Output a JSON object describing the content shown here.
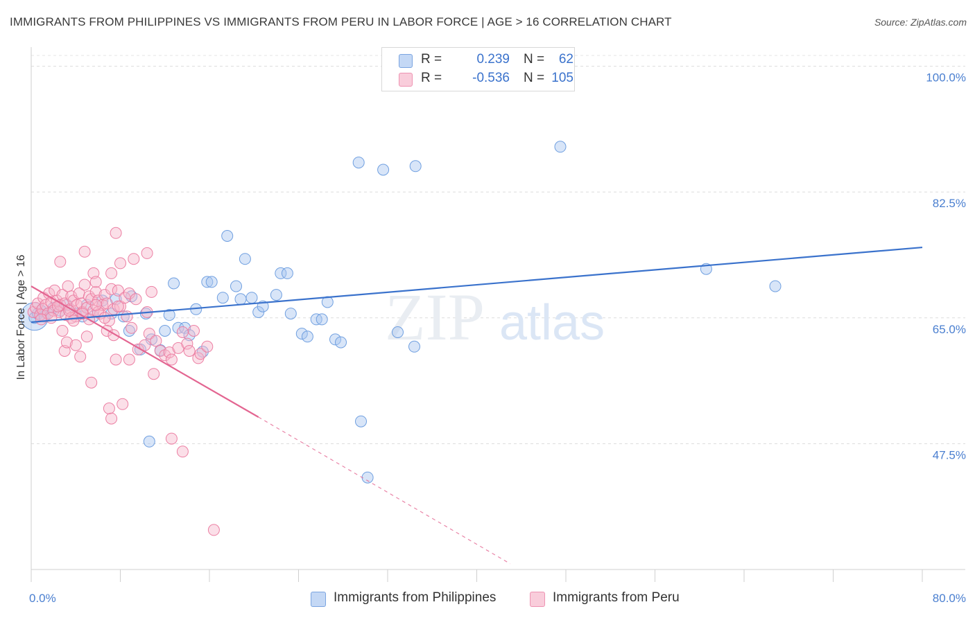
{
  "title": "IMMIGRANTS FROM PHILIPPINES VS IMMIGRANTS FROM PERU IN LABOR FORCE | AGE > 16 CORRELATION CHART",
  "source": "Source: ZipAtlas.com",
  "watermark": {
    "zip": "ZIP",
    "atlas": "atlas"
  },
  "legend": {
    "rows": [
      {
        "r_label": "R =",
        "r_value": "0.239",
        "n_label": "N =",
        "n_value": "62",
        "color": "#a9c6f0"
      },
      {
        "r_label": "R =",
        "r_value": "-0.536",
        "n_label": "N =",
        "n_value": "105",
        "color": "#f6b8cc"
      }
    ]
  },
  "bottom_legend": [
    {
      "label": "Immigrants from Philippines",
      "color": "#a9c6f0"
    },
    {
      "label": "Immigrants from Peru",
      "color": "#f6b8cc"
    }
  ],
  "chart_data": {
    "type": "scatter",
    "title": "IMMIGRANTS FROM PHILIPPINES VS IMMIGRANTS FROM PERU IN LABOR FORCE | AGE > 16 CORRELATION CHART",
    "xlabel": "",
    "ylabel": "In Labor Force | Age > 16",
    "xlim": [
      0,
      80
    ],
    "ylim": [
      30,
      101.5
    ],
    "x_tick_labels": [
      {
        "value": 0,
        "label": "0.0%"
      },
      {
        "value": 80,
        "label": "80.0%"
      }
    ],
    "y_ticks": [
      {
        "value": 100,
        "label": "100.0%"
      },
      {
        "value": 82.5,
        "label": "82.5%"
      },
      {
        "value": 65,
        "label": "65.0%"
      },
      {
        "value": 47.5,
        "label": "47.5%"
      }
    ],
    "x_minor_ticks": [
      0,
      8,
      16,
      24,
      32,
      40,
      48,
      56,
      64,
      72,
      80
    ],
    "grid": true,
    "series": [
      {
        "name": "Immigrants from Philippines",
        "color": "#6f9fe0",
        "fill": "#a9c6f0",
        "stroke": "#6f9fe0",
        "trend": {
          "x": [
            0,
            80
          ],
          "y": [
            64.4,
            74.8
          ],
          "color": "#3a72cc",
          "dashed_extension": false
        },
        "points": [
          [
            0.3,
            65.0
          ],
          [
            0.6,
            65.6
          ],
          [
            0.9,
            66.0
          ],
          [
            1.2,
            65.2
          ],
          [
            1.5,
            65.6
          ],
          [
            2.0,
            66.4
          ],
          [
            2.6,
            66.0
          ],
          [
            3.2,
            66.8
          ],
          [
            4.0,
            65.6
          ],
          [
            4.6,
            65.2
          ],
          [
            5.0,
            66.8
          ],
          [
            5.6,
            65.2
          ],
          [
            6.4,
            67.4
          ],
          [
            7.6,
            67.6
          ],
          [
            8.3,
            65.2
          ],
          [
            8.8,
            63.2
          ],
          [
            9.8,
            60.6
          ],
          [
            10.3,
            65.6
          ],
          [
            11.6,
            60.5
          ],
          [
            12.0,
            63.2
          ],
          [
            12.4,
            65.4
          ],
          [
            12.8,
            69.8
          ],
          [
            13.2,
            63.6
          ],
          [
            13.8,
            63.6
          ],
          [
            14.2,
            62.6
          ],
          [
            14.8,
            66.2
          ],
          [
            15.4,
            60.3
          ],
          [
            15.8,
            70.0
          ],
          [
            16.2,
            70.0
          ],
          [
            17.2,
            67.8
          ],
          [
            17.6,
            76.4
          ],
          [
            18.4,
            69.4
          ],
          [
            18.8,
            67.6
          ],
          [
            19.2,
            73.2
          ],
          [
            19.8,
            67.8
          ],
          [
            20.4,
            65.8
          ],
          [
            20.8,
            66.6
          ],
          [
            22.0,
            68.2
          ],
          [
            22.4,
            71.2
          ],
          [
            23.0,
            71.2
          ],
          [
            23.3,
            65.6
          ],
          [
            24.3,
            62.8
          ],
          [
            24.8,
            62.4
          ],
          [
            25.6,
            64.8
          ],
          [
            26.1,
            64.8
          ],
          [
            26.6,
            67.2
          ],
          [
            27.3,
            62.0
          ],
          [
            27.8,
            61.6
          ],
          [
            29.4,
            86.6
          ],
          [
            29.6,
            50.6
          ],
          [
            30.2,
            42.8
          ],
          [
            31.6,
            85.6
          ],
          [
            32.9,
            63.0
          ],
          [
            34.4,
            61.0
          ],
          [
            34.5,
            86.1
          ],
          [
            10.6,
            47.8
          ],
          [
            47.5,
            88.8
          ],
          [
            60.6,
            71.8
          ],
          [
            66.8,
            69.4
          ],
          [
            7.2,
            65.6
          ],
          [
            9.0,
            68.0
          ],
          [
            10.8,
            62.0
          ]
        ]
      },
      {
        "name": "Immigrants from Peru",
        "color": "#ec7fa3",
        "fill": "#f6b8cc",
        "stroke": "#ec7fa3",
        "trend": {
          "x": [
            0,
            20.4
          ],
          "y": [
            69.4,
            51.2
          ],
          "dashed_x": [
            20.4,
            43.0
          ],
          "dashed_y": [
            51.2,
            30.8
          ],
          "color": "#e36591",
          "dashed_extension": true
        },
        "points": [
          [
            0.2,
            65.8
          ],
          [
            0.4,
            66.4
          ],
          [
            0.6,
            67.0
          ],
          [
            0.8,
            65.4
          ],
          [
            1.0,
            66.2
          ],
          [
            1.1,
            67.8
          ],
          [
            1.3,
            66.8
          ],
          [
            1.5,
            65.6
          ],
          [
            1.6,
            68.4
          ],
          [
            1.8,
            67.2
          ],
          [
            2.0,
            66.0
          ],
          [
            2.1,
            68.8
          ],
          [
            2.3,
            67.4
          ],
          [
            2.5,
            65.8
          ],
          [
            2.6,
            66.8
          ],
          [
            2.8,
            68.2
          ],
          [
            3.0,
            67.0
          ],
          [
            3.1,
            65.4
          ],
          [
            3.3,
            69.4
          ],
          [
            3.5,
            66.2
          ],
          [
            3.6,
            68.0
          ],
          [
            3.8,
            67.4
          ],
          [
            4.0,
            65.2
          ],
          [
            4.1,
            66.8
          ],
          [
            4.3,
            68.4
          ],
          [
            4.5,
            67.0
          ],
          [
            4.6,
            65.8
          ],
          [
            4.8,
            69.6
          ],
          [
            5.0,
            66.4
          ],
          [
            5.2,
            68.0
          ],
          [
            5.4,
            67.6
          ],
          [
            5.6,
            66.0
          ],
          [
            5.8,
            68.6
          ],
          [
            6.0,
            67.4
          ],
          [
            6.2,
            65.6
          ],
          [
            6.4,
            66.8
          ],
          [
            6.6,
            68.2
          ],
          [
            6.8,
            67.0
          ],
          [
            7.0,
            64.6
          ],
          [
            7.2,
            69.0
          ],
          [
            7.4,
            66.2
          ],
          [
            7.8,
            68.8
          ],
          [
            8.0,
            66.6
          ],
          [
            8.4,
            67.8
          ],
          [
            8.8,
            68.4
          ],
          [
            2.6,
            72.8
          ],
          [
            2.8,
            63.2
          ],
          [
            3.0,
            60.4
          ],
          [
            3.2,
            61.6
          ],
          [
            3.6,
            65.0
          ],
          [
            3.8,
            64.6
          ],
          [
            4.0,
            61.2
          ],
          [
            4.4,
            59.6
          ],
          [
            4.6,
            65.6
          ],
          [
            4.8,
            74.2
          ],
          [
            5.0,
            62.4
          ],
          [
            5.2,
            64.8
          ],
          [
            5.6,
            71.2
          ],
          [
            5.8,
            70.0
          ],
          [
            6.0,
            65.8
          ],
          [
            5.4,
            56.0
          ],
          [
            6.6,
            65.0
          ],
          [
            6.8,
            63.2
          ],
          [
            7.2,
            71.2
          ],
          [
            7.4,
            62.6
          ],
          [
            7.6,
            59.2
          ],
          [
            7.8,
            66.6
          ],
          [
            8.0,
            72.6
          ],
          [
            8.6,
            65.2
          ],
          [
            8.8,
            59.2
          ],
          [
            9.0,
            63.6
          ],
          [
            9.2,
            73.2
          ],
          [
            9.6,
            60.6
          ],
          [
            10.2,
            61.2
          ],
          [
            10.4,
            65.8
          ],
          [
            10.6,
            62.8
          ],
          [
            10.8,
            68.6
          ],
          [
            11.2,
            61.8
          ],
          [
            11.6,
            60.4
          ],
          [
            12.0,
            59.8
          ],
          [
            12.4,
            60.2
          ],
          [
            12.6,
            59.2
          ],
          [
            13.2,
            60.8
          ],
          [
            13.6,
            63.0
          ],
          [
            14.0,
            61.4
          ],
          [
            14.2,
            60.4
          ],
          [
            14.6,
            63.2
          ],
          [
            15.0,
            59.4
          ],
          [
            15.2,
            60.0
          ],
          [
            15.8,
            61.0
          ],
          [
            7.0,
            52.4
          ],
          [
            7.2,
            51.0
          ],
          [
            8.2,
            53.0
          ],
          [
            7.6,
            76.8
          ],
          [
            10.4,
            74.0
          ],
          [
            11.0,
            57.2
          ],
          [
            12.6,
            48.2
          ],
          [
            13.6,
            46.4
          ],
          [
            16.4,
            35.5
          ],
          [
            2.4,
            66.6
          ],
          [
            1.8,
            65.0
          ],
          [
            0.9,
            64.8
          ],
          [
            3.4,
            66.0
          ],
          [
            5.8,
            66.8
          ],
          [
            9.4,
            67.6
          ]
        ]
      }
    ]
  }
}
